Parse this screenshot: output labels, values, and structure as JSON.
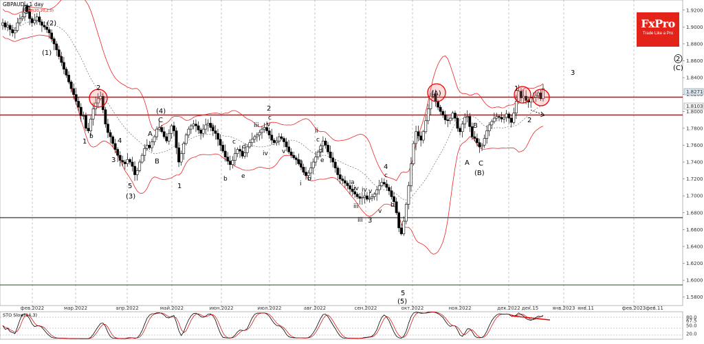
{
  "header": {
    "symbol_label": "GBPAUD , 1 day",
    "bb_params": "BB(20,20,2.0)"
  },
  "logo": {
    "brand": "FxPro",
    "tagline": "Trade Like a Pro"
  },
  "chart_data": [
    {
      "type": "candlestick",
      "symbol": "GBPAUD",
      "timeframe": "1 day",
      "ylim": [
        1.57,
        1.932
      ],
      "y_ticks": [
        "1.9200",
        "1.9000",
        "1.8800",
        "1.8600",
        "1.8400",
        "1.8200",
        "1.8000",
        "1.7800",
        "1.7600",
        "1.7400",
        "1.7200",
        "1.7000",
        "1.6800",
        "1.6600",
        "1.6400",
        "1.6200",
        "1.6000",
        "1.5800"
      ],
      "x_ticks": [
        "фев.2022",
        "мар.2022",
        "апр.2022",
        "май.2022",
        "июн.2022",
        "июл.2022",
        "авг.2022",
        "сен.2022",
        "окт.2022",
        "ноя.2022",
        "дек.2022",
        "дек.15",
        "янв.2023",
        "янв.11",
        "фев.2023",
        "фев.11"
      ],
      "price_labels": {
        "current": "1.8271",
        "bid": "1.8103"
      },
      "close": [
        1.905,
        1.9,
        1.902,
        1.897,
        1.893,
        1.896,
        1.905,
        1.91,
        1.912,
        1.925,
        1.918,
        1.91,
        1.905,
        1.908,
        1.912,
        1.906,
        1.902,
        1.9,
        1.897,
        1.893,
        1.886,
        1.88,
        1.873,
        1.865,
        1.858,
        1.85,
        1.843,
        1.835,
        1.827,
        1.82,
        1.812,
        1.805,
        1.795,
        1.795,
        1.78,
        1.777,
        1.791,
        1.803,
        1.81,
        1.815,
        1.818,
        1.802,
        1.785,
        1.775,
        1.77,
        1.762,
        1.755,
        1.748,
        1.742,
        1.74,
        1.738,
        1.743,
        1.74,
        1.735,
        1.725,
        1.73,
        1.74,
        1.748,
        1.756,
        1.76,
        1.757,
        1.764,
        1.77,
        1.779,
        1.781,
        1.776,
        1.77,
        1.765,
        1.774,
        1.783,
        1.777,
        1.757,
        1.74,
        1.75,
        1.762,
        1.772,
        1.779,
        1.783,
        1.785,
        1.783,
        1.778,
        1.774,
        1.779,
        1.784,
        1.786,
        1.781,
        1.777,
        1.774,
        1.767,
        1.76,
        1.753,
        1.746,
        1.741,
        1.737,
        1.742,
        1.75,
        1.755,
        1.753,
        1.747,
        1.751,
        1.758,
        1.763,
        1.767,
        1.77,
        1.772,
        1.775,
        1.779,
        1.781,
        1.777,
        1.772,
        1.766,
        1.763,
        1.765,
        1.77,
        1.768,
        1.764,
        1.758,
        1.752,
        1.748,
        1.745,
        1.743,
        1.738,
        1.734,
        1.728,
        1.724,
        1.727,
        1.733,
        1.74,
        1.746,
        1.752,
        1.759,
        1.765,
        1.76,
        1.752,
        1.745,
        1.74,
        1.733,
        1.725,
        1.72,
        1.718,
        1.715,
        1.712,
        1.708,
        1.705,
        1.702,
        1.699,
        1.697,
        1.698,
        1.7,
        1.696,
        1.697,
        1.699,
        1.702,
        1.707,
        1.712,
        1.716,
        1.714,
        1.71,
        1.706,
        1.699,
        1.693,
        1.68,
        1.662,
        1.655,
        1.67,
        1.69,
        1.712,
        1.738,
        1.762,
        1.776,
        1.771,
        1.766,
        1.776,
        1.789,
        1.803,
        1.818,
        1.82,
        1.812,
        1.805,
        1.8,
        1.796,
        1.79,
        1.789,
        1.792,
        1.798,
        1.792,
        1.78,
        1.776,
        1.785,
        1.793,
        1.794,
        1.782,
        1.77,
        1.768,
        1.763,
        1.758,
        1.76,
        1.768,
        1.777,
        1.784,
        1.788,
        1.792,
        1.794,
        1.793,
        1.791,
        1.793,
        1.797,
        1.792,
        1.787,
        1.798,
        1.812,
        1.824,
        1.816,
        1.818,
        1.813,
        1.811,
        1.816,
        1.817,
        1.819,
        1.822,
        1.815,
        1.827
      ]
    },
    {
      "type": "line",
      "title": "STO Slow(14,3)",
      "ylim": [
        0,
        100
      ],
      "y_ticks": [
        "80.0",
        "67.5",
        "50.0",
        "20.0"
      ]
    }
  ],
  "wave_labels": {
    "top_left": [
      "0",
      "(1)",
      "(2)",
      "1",
      "2",
      "3",
      "4",
      "5",
      "(3)",
      "(4)",
      "A",
      "B",
      "C",
      "1"
    ],
    "middle": [
      "a",
      "b",
      "c",
      "d",
      "e",
      "i",
      "ii",
      "iii",
      "iv",
      "v",
      "2",
      "c",
      "3",
      "4",
      "5",
      "(5)"
    ],
    "right": [
      "(A)",
      "A",
      "B",
      "C",
      "(B)",
      "1",
      "2",
      "3",
      "2",
      "(C)"
    ]
  }
}
